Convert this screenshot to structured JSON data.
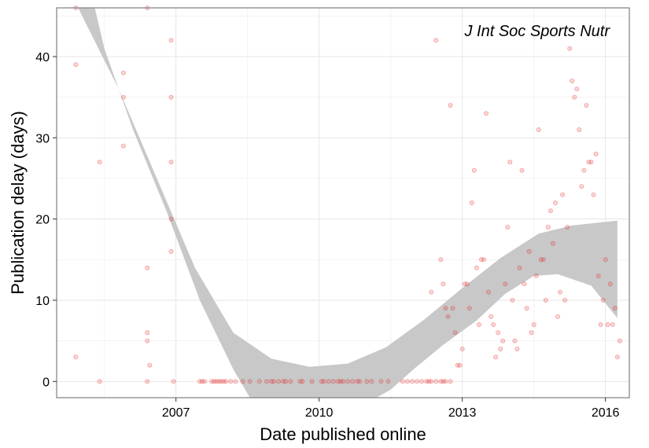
{
  "chart_data": {
    "type": "scatter",
    "title": "",
    "annotation": "J Int Soc Sports Nutr",
    "xlabel": "Date published online",
    "ylabel": "Publication delay (days)",
    "xlim": [
      2004.5,
      2016.5
    ],
    "ylim": [
      -2,
      46
    ],
    "x_ticks": [
      2007,
      2010,
      2013,
      2016
    ],
    "y_ticks": [
      0,
      10,
      20,
      30,
      40
    ],
    "grid": true,
    "legend": "none",
    "colors": {
      "points": "#e41a1c",
      "band": "#c8c8c8",
      "grid_major": "#e6e6e6",
      "grid_minor": "#f3f3f3",
      "border": "#7f7f7f"
    },
    "points": [
      [
        2004.9,
        46
      ],
      [
        2004.9,
        39
      ],
      [
        2004.9,
        3
      ],
      [
        2005.4,
        27
      ],
      [
        2005.4,
        0
      ],
      [
        2005.9,
        38
      ],
      [
        2005.9,
        35
      ],
      [
        2005.9,
        29
      ],
      [
        2006.4,
        46
      ],
      [
        2006.4,
        14
      ],
      [
        2006.4,
        6
      ],
      [
        2006.4,
        5
      ],
      [
        2006.45,
        2
      ],
      [
        2006.4,
        0
      ],
      [
        2006.9,
        42
      ],
      [
        2006.9,
        35
      ],
      [
        2006.9,
        27
      ],
      [
        2006.9,
        20
      ],
      [
        2006.9,
        16
      ],
      [
        2006.95,
        0
      ],
      [
        2007.5,
        0
      ],
      [
        2007.55,
        0
      ],
      [
        2007.6,
        0
      ],
      [
        2007.75,
        0
      ],
      [
        2007.8,
        0
      ],
      [
        2007.85,
        0
      ],
      [
        2007.9,
        0
      ],
      [
        2007.95,
        0
      ],
      [
        2008.0,
        0
      ],
      [
        2008.05,
        0
      ],
      [
        2008.15,
        0
      ],
      [
        2008.25,
        0
      ],
      [
        2008.4,
        0
      ],
      [
        2008.55,
        0
      ],
      [
        2008.75,
        0
      ],
      [
        2008.9,
        0
      ],
      [
        2009.0,
        0
      ],
      [
        2009.05,
        0
      ],
      [
        2009.15,
        0
      ],
      [
        2009.25,
        0
      ],
      [
        2009.3,
        0
      ],
      [
        2009.4,
        0
      ],
      [
        2009.6,
        0
      ],
      [
        2009.65,
        0
      ],
      [
        2009.85,
        0
      ],
      [
        2010.05,
        0
      ],
      [
        2010.1,
        0
      ],
      [
        2010.2,
        0
      ],
      [
        2010.3,
        0
      ],
      [
        2010.4,
        0
      ],
      [
        2010.45,
        0
      ],
      [
        2010.5,
        0
      ],
      [
        2010.6,
        0
      ],
      [
        2010.7,
        0
      ],
      [
        2010.8,
        0
      ],
      [
        2010.85,
        0
      ],
      [
        2011.0,
        0
      ],
      [
        2011.1,
        0
      ],
      [
        2011.3,
        0
      ],
      [
        2011.45,
        0
      ],
      [
        2011.75,
        0
      ],
      [
        2011.85,
        0
      ],
      [
        2011.95,
        0
      ],
      [
        2012.05,
        0
      ],
      [
        2012.15,
        0
      ],
      [
        2012.25,
        0
      ],
      [
        2012.3,
        0
      ],
      [
        2012.35,
        0
      ],
      [
        2012.45,
        0
      ],
      [
        2012.55,
        0
      ],
      [
        2012.6,
        0
      ],
      [
        2012.65,
        0
      ],
      [
        2012.75,
        0
      ],
      [
        2012.35,
        11
      ],
      [
        2012.45,
        42
      ],
      [
        2012.55,
        15
      ],
      [
        2012.6,
        12
      ],
      [
        2012.65,
        9
      ],
      [
        2012.7,
        8
      ],
      [
        2012.75,
        34
      ],
      [
        2012.8,
        9
      ],
      [
        2012.85,
        6
      ],
      [
        2012.9,
        2
      ],
      [
        2012.95,
        2
      ],
      [
        2013.0,
        4
      ],
      [
        2013.05,
        12
      ],
      [
        2013.1,
        12
      ],
      [
        2013.15,
        9
      ],
      [
        2013.2,
        22
      ],
      [
        2013.25,
        26
      ],
      [
        2013.3,
        14
      ],
      [
        2013.35,
        7
      ],
      [
        2013.4,
        15
      ],
      [
        2013.45,
        15
      ],
      [
        2013.5,
        33
      ],
      [
        2013.55,
        11
      ],
      [
        2013.6,
        8
      ],
      [
        2013.65,
        7
      ],
      [
        2013.7,
        3
      ],
      [
        2013.75,
        6
      ],
      [
        2013.8,
        4
      ],
      [
        2013.85,
        5
      ],
      [
        2013.9,
        12
      ],
      [
        2013.95,
        19
      ],
      [
        2014.0,
        27
      ],
      [
        2014.05,
        10
      ],
      [
        2014.1,
        5
      ],
      [
        2014.15,
        4
      ],
      [
        2014.2,
        14
      ],
      [
        2014.25,
        26
      ],
      [
        2014.3,
        12
      ],
      [
        2014.35,
        9
      ],
      [
        2014.4,
        16
      ],
      [
        2014.45,
        6
      ],
      [
        2014.5,
        7
      ],
      [
        2014.55,
        13
      ],
      [
        2014.6,
        31
      ],
      [
        2014.65,
        15
      ],
      [
        2014.7,
        15
      ],
      [
        2014.75,
        10
      ],
      [
        2014.8,
        19
      ],
      [
        2014.85,
        21
      ],
      [
        2014.9,
        17
      ],
      [
        2014.95,
        22
      ],
      [
        2015.0,
        8
      ],
      [
        2015.05,
        11
      ],
      [
        2015.1,
        23
      ],
      [
        2015.15,
        10
      ],
      [
        2015.2,
        19
      ],
      [
        2015.25,
        41
      ],
      [
        2015.3,
        37
      ],
      [
        2015.35,
        35
      ],
      [
        2015.4,
        36
      ],
      [
        2015.45,
        31
      ],
      [
        2015.5,
        24
      ],
      [
        2015.55,
        26
      ],
      [
        2015.6,
        34
      ],
      [
        2015.65,
        27
      ],
      [
        2015.7,
        27
      ],
      [
        2015.75,
        23
      ],
      [
        2015.8,
        28
      ],
      [
        2015.85,
        13
      ],
      [
        2015.9,
        7
      ],
      [
        2015.95,
        10
      ],
      [
        2016.0,
        15
      ],
      [
        2016.05,
        7
      ],
      [
        2016.1,
        12
      ],
      [
        2016.15,
        7
      ],
      [
        2016.2,
        9
      ],
      [
        2016.25,
        3
      ],
      [
        2016.3,
        5
      ]
    ]
  }
}
